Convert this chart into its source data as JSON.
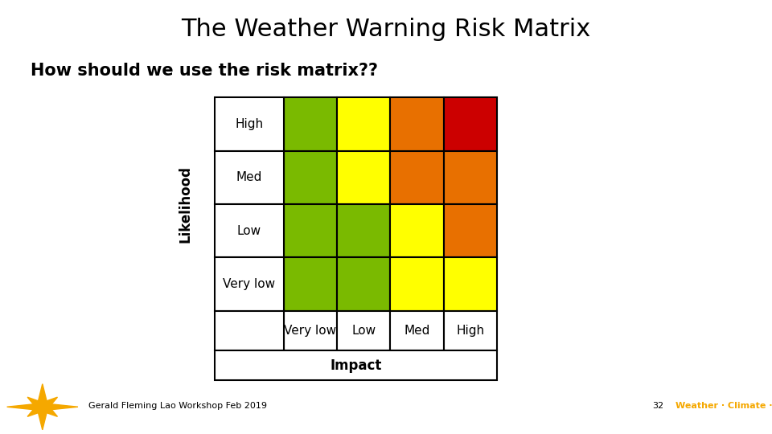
{
  "title": "The Weather Warning Risk Matrix",
  "subtitle": "How should we use the risk matrix??",
  "likelihood_labels": [
    "High",
    "Med",
    "Low",
    "Very low"
  ],
  "impact_labels": [
    "Very low",
    "Low",
    "Med",
    "High"
  ],
  "likelihood_axis_label": "Likelihood",
  "impact_axis_label": "Impact",
  "colors": [
    [
      "#7aba00",
      "#ffff00",
      "#e87000",
      "#cc0000"
    ],
    [
      "#7aba00",
      "#ffff00",
      "#e87000",
      "#e87000"
    ],
    [
      "#7aba00",
      "#7aba00",
      "#ffff00",
      "#e87000"
    ],
    [
      "#7aba00",
      "#7aba00",
      "#ffff00",
      "#ffff00"
    ]
  ],
  "footer_text": "Gerald Fleming Lao Workshop Feb 2019",
  "footer_number": "32",
  "footer_brand": "Weather · Climate · Water",
  "footer_bar_color": "#f5a800",
  "footer_star_color": "#f5a800",
  "title_fontsize": 22,
  "subtitle_fontsize": 15,
  "cell_label_fontsize": 11,
  "axis_label_fontsize": 12,
  "bg_color": "#ffffff"
}
